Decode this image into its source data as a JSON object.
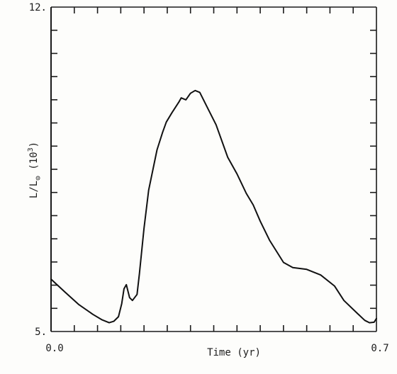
{
  "chart_data": {
    "type": "line",
    "title": "",
    "xlabel": "Time (yr)",
    "ylabel_main": "L/L",
    "ylabel_sub": "⊙",
    "ylabel_unit": "(10",
    "ylabel_exp": "3",
    "ylabel_close": ")",
    "xlim": [
      0.0,
      0.7
    ],
    "ylim": [
      5.0,
      12.0
    ],
    "x_tick_labels": [
      {
        "value": 0.0,
        "label": "0.0"
      },
      {
        "value": 0.7,
        "label": "0.7"
      }
    ],
    "y_tick_labels": [
      {
        "value": 5.0,
        "label": "5."
      },
      {
        "value": 12.0,
        "label": "12."
      }
    ],
    "x_minor_ticks": [
      0.05,
      0.1,
      0.15,
      0.2,
      0.25,
      0.3,
      0.35,
      0.4,
      0.45,
      0.5,
      0.55,
      0.6,
      0.65
    ],
    "y_minor_ticks": [
      5.5,
      6.0,
      6.5,
      7.0,
      7.5,
      8.0,
      8.5,
      9.0,
      9.5,
      10.0,
      10.5,
      11.0,
      11.5
    ],
    "grid": false,
    "series": [
      {
        "x": [
          0.0,
          0.03,
          0.06,
          0.09,
          0.11,
          0.125,
          0.135,
          0.145,
          0.152,
          0.157,
          0.162,
          0.169,
          0.175,
          0.185,
          0.19,
          0.2,
          0.21,
          0.228,
          0.24,
          0.248,
          0.26,
          0.275,
          0.28,
          0.29,
          0.3,
          0.31,
          0.32,
          0.34,
          0.355,
          0.38,
          0.4,
          0.42,
          0.435,
          0.45,
          0.47,
          0.5,
          0.52,
          0.55,
          0.58,
          0.61,
          0.63,
          0.66,
          0.675,
          0.685,
          0.695,
          0.7
        ],
        "y": [
          6.13,
          5.85,
          5.58,
          5.37,
          5.25,
          5.19,
          5.22,
          5.32,
          5.6,
          5.92,
          6.01,
          5.73,
          5.67,
          5.8,
          6.24,
          7.22,
          8.05,
          8.92,
          9.3,
          9.52,
          9.72,
          9.95,
          10.04,
          10.0,
          10.14,
          10.2,
          10.16,
          9.76,
          9.46,
          8.76,
          8.4,
          7.98,
          7.73,
          7.38,
          6.97,
          6.49,
          6.38,
          6.34,
          6.22,
          5.98,
          5.67,
          5.38,
          5.24,
          5.19,
          5.2,
          5.28
        ]
      }
    ]
  }
}
